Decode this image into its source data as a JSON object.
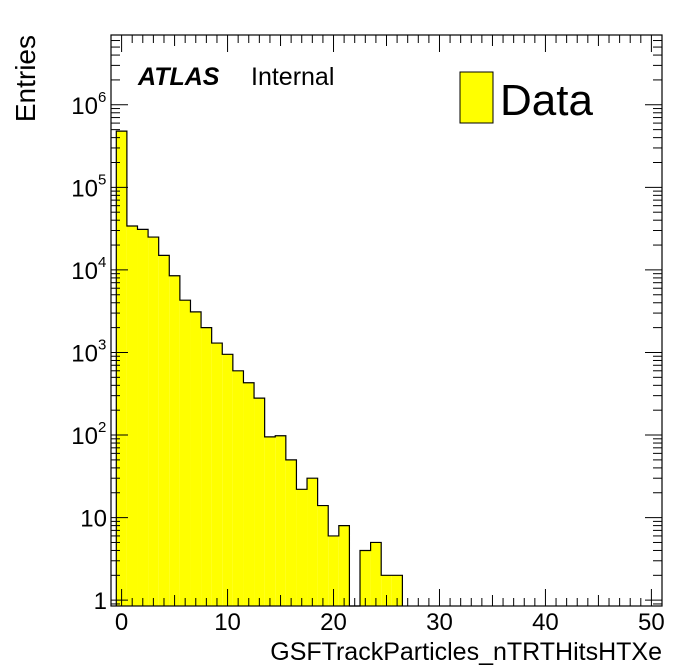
{
  "chart_data": {
    "type": "bar",
    "histogram": true,
    "xlabel": "GSFTrackParticles_nTRTHitsHTXe",
    "ylabel": "Entries",
    "xlim": [
      -1,
      51
    ],
    "ylim": [
      0.85,
      7000000
    ],
    "yscale": "log",
    "grid": false,
    "legend_position": "top-right",
    "x_ticks": [
      0,
      10,
      20,
      30,
      40,
      50
    ],
    "y_ticks": [
      {
        "value": 1,
        "base": "1",
        "exp": ""
      },
      {
        "value": 10,
        "base": "10",
        "exp": ""
      },
      {
        "value": 100,
        "base": "10",
        "exp": "2"
      },
      {
        "value": 1000,
        "base": "10",
        "exp": "3"
      },
      {
        "value": 10000,
        "base": "10",
        "exp": "4"
      },
      {
        "value": 100000,
        "base": "10",
        "exp": "5"
      },
      {
        "value": 1000000,
        "base": "10",
        "exp": "6"
      }
    ],
    "bin_width": 1,
    "bin_lefts": [
      -0.5,
      0.5,
      1.5,
      2.5,
      3.5,
      4.5,
      5.5,
      6.5,
      7.5,
      8.5,
      9.5,
      10.5,
      11.5,
      12.5,
      13.5,
      14.5,
      15.5,
      16.5,
      17.5,
      18.5,
      19.5,
      20.5,
      21.5,
      22.5,
      23.5,
      24.5,
      25.5
    ],
    "series": [
      {
        "name": "Data",
        "color": "#ffff00",
        "values": [
          480000,
          34000,
          31000,
          25000,
          15000,
          8500,
          4300,
          3100,
          2000,
          1300,
          950,
          600,
          430,
          280,
          95,
          98,
          50,
          22,
          30,
          14,
          6,
          8,
          0,
          4,
          5,
          2,
          2
        ]
      }
    ],
    "annotation": {
      "experiment": "ATLAS",
      "label": "Internal"
    }
  }
}
